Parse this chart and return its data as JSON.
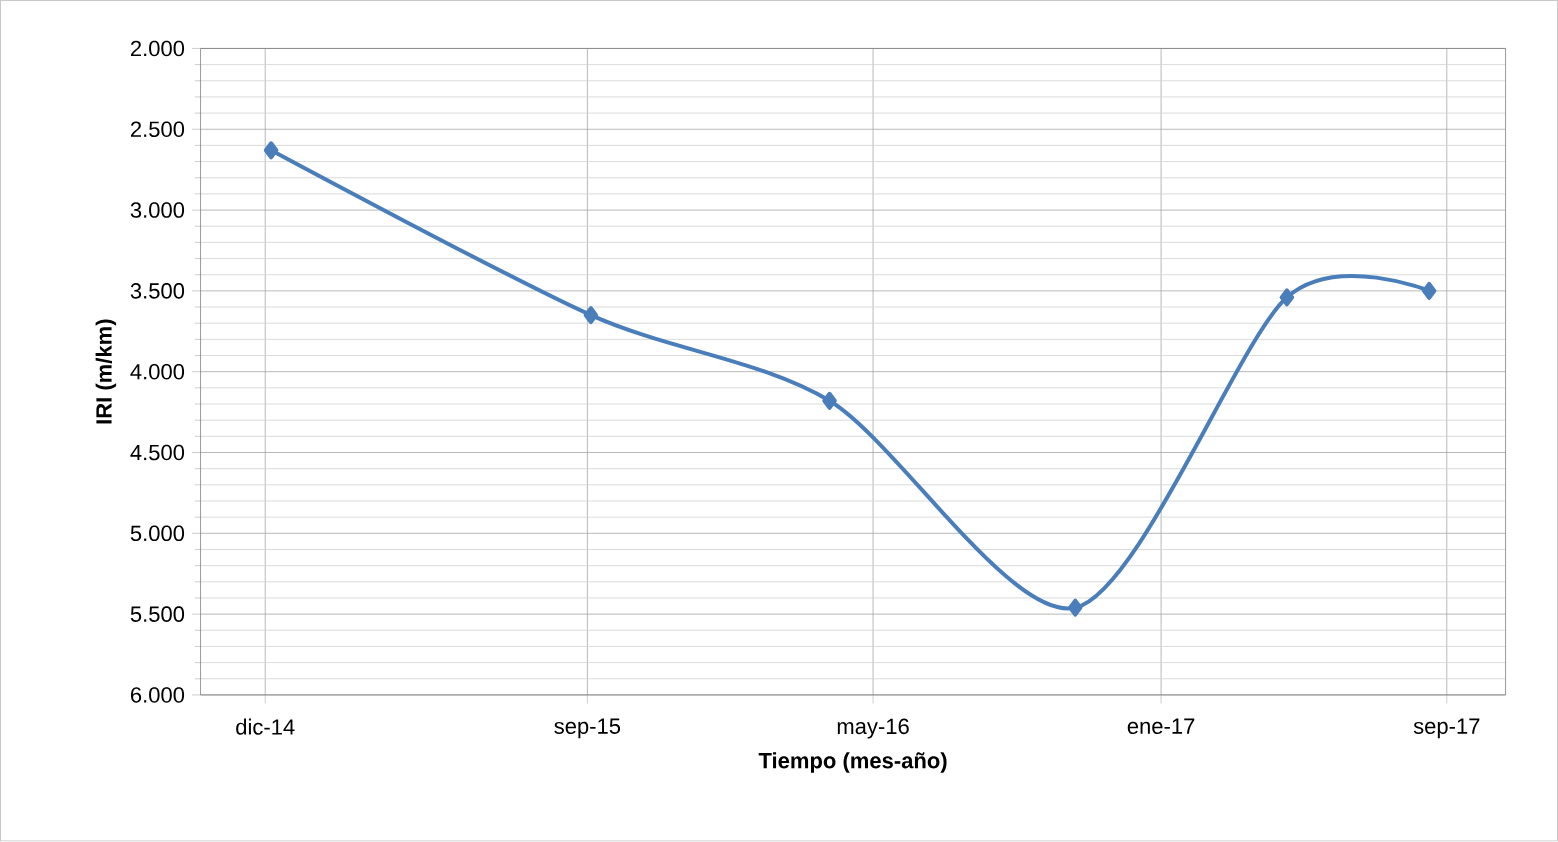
{
  "chart_data": {
    "type": "line",
    "xlabel": "Tiempo (mes-año)",
    "ylabel": "IRI (m/km)",
    "x": [
      "2014-12-06",
      "2015-09-04",
      "2016-03-25",
      "2016-10-20",
      "2017-04-18",
      "2017-08-17"
    ],
    "series": [
      {
        "color": "#4a7ebb",
        "values": [
          2.63,
          3.65,
          4.18,
          5.46,
          3.54,
          3.5
        ]
      }
    ],
    "xlim": [
      "2014-10-07",
      "2017-10-21"
    ],
    "xticks": [
      {
        "value": "2014-12-01",
        "label": "dic-14"
      },
      {
        "value": "2015-09-01",
        "label": "sep-15"
      },
      {
        "value": "2016-05-01",
        "label": "may-16"
      },
      {
        "value": "2017-01-01",
        "label": "ene-17"
      },
      {
        "value": "2017-09-01",
        "label": "sep-17"
      }
    ],
    "ylim": [
      6,
      2
    ],
    "yticks": [
      {
        "value": 2,
        "label": "2.000"
      },
      {
        "value": 2.5,
        "label": "2.500"
      },
      {
        "value": 3,
        "label": "3.000"
      },
      {
        "value": 3.5,
        "label": "3.500"
      },
      {
        "value": 4,
        "label": "4.000"
      },
      {
        "value": 4.5,
        "label": "4.500"
      },
      {
        "value": 5,
        "label": "5.000"
      },
      {
        "value": 5.5,
        "label": "5.500"
      },
      {
        "value": 6,
        "label": "6.000"
      }
    ],
    "grid": true,
    "marker": "diamond",
    "line_style": "solid"
  }
}
